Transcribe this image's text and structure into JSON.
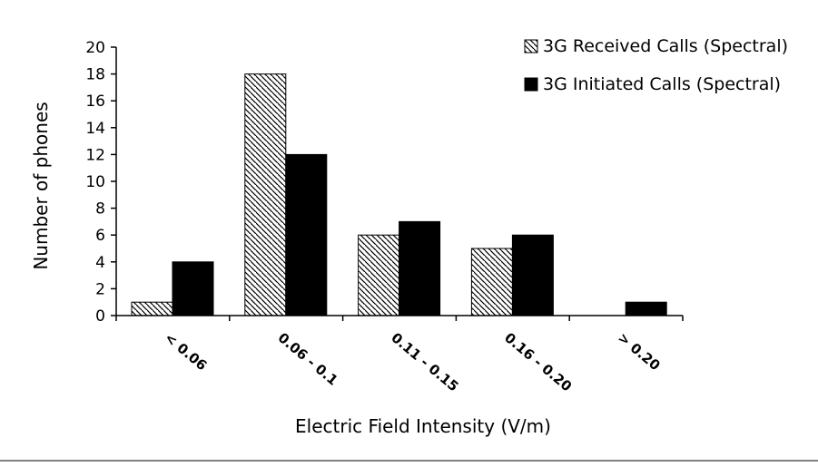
{
  "chart_data": {
    "type": "bar",
    "title": "",
    "xlabel": "Electric Field Intensity (V/m)",
    "ylabel": "Number of phones",
    "categories": [
      "< 0.06",
      "0.06 - 0.1",
      "0.11 - 0.15",
      "0.16 - 0.20",
      "> 0.20"
    ],
    "series": [
      {
        "name": "3G Received Calls (Spectral)",
        "values": [
          1,
          18,
          6,
          5,
          0
        ],
        "fill": "hatched",
        "color": "#000000"
      },
      {
        "name": "3G Initiated Calls (Spectral)",
        "values": [
          4,
          12,
          7,
          6,
          1
        ],
        "fill": "solid",
        "color": "#000000"
      }
    ],
    "ylim": [
      0,
      20
    ],
    "yticks": [
      0,
      2,
      4,
      6,
      8,
      10,
      12,
      14,
      16,
      18,
      20
    ],
    "grid": false,
    "legend_position": "top-right"
  }
}
